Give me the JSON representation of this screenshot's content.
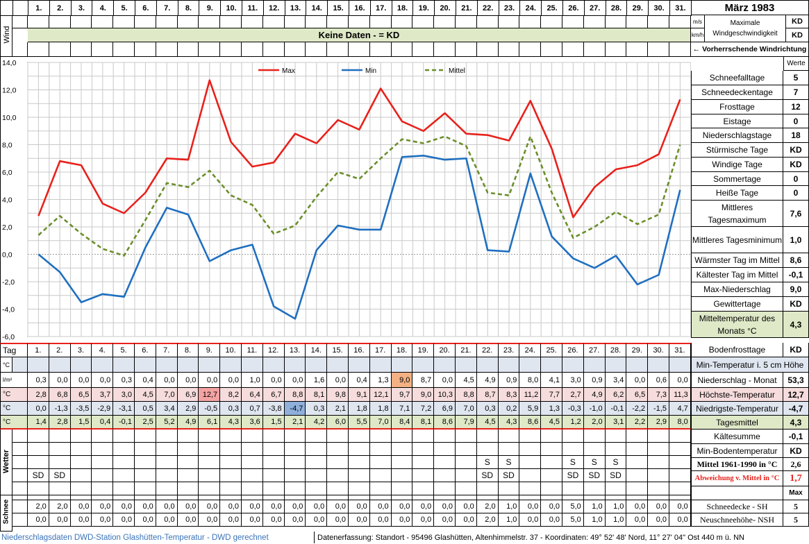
{
  "header": {
    "title": "März 1983",
    "days": [
      "1.",
      "2.",
      "3.",
      "4.",
      "5.",
      "6.",
      "7.",
      "8.",
      "9.",
      "10.",
      "11.",
      "12.",
      "13.",
      "14.",
      "15.",
      "16.",
      "17.",
      "18.",
      "19.",
      "20.",
      "21.",
      "22.",
      "23.",
      "24.",
      "25.",
      "26.",
      "27.",
      "28.",
      "29.",
      "30.",
      "31."
    ],
    "wind_label": "Wind",
    "unit_ms": "m/s",
    "unit_kmh": "km/h",
    "max_wind_label": "Maximale Windgeschwindigkeit",
    "max_wind_val1": "KD",
    "max_wind_val2": "KD",
    "no_data_banner": "Keine Daten -  = KD",
    "wind_direction_label": "← Vorherrschende Windrichtung",
    "werte_label": "Werte"
  },
  "chart_data": {
    "type": "line",
    "x": [
      1,
      2,
      3,
      4,
      5,
      6,
      7,
      8,
      9,
      10,
      11,
      12,
      13,
      14,
      15,
      16,
      17,
      18,
      19,
      20,
      21,
      22,
      23,
      24,
      25,
      26,
      27,
      28,
      29,
      30,
      31
    ],
    "ylim": [
      -6,
      14
    ],
    "yticks": [
      "14,0",
      "12,0",
      "10,0",
      "8,0",
      "6,0",
      "4,0",
      "2,0",
      "0,0",
      "-2,0",
      "-4,0",
      "-6,0"
    ],
    "grid": true,
    "legend_position": "top",
    "series": [
      {
        "name": "Max",
        "color": "#e8211b",
        "dash": "none",
        "values": [
          2.8,
          6.8,
          6.5,
          3.7,
          3.0,
          4.5,
          7.0,
          6.9,
          12.7,
          8.2,
          6.4,
          6.7,
          8.8,
          8.1,
          9.8,
          9.1,
          12.1,
          9.7,
          9.0,
          10.3,
          8.8,
          8.7,
          8.3,
          11.2,
          7.7,
          2.7,
          4.9,
          6.2,
          6.5,
          7.3,
          11.3
        ]
      },
      {
        "name": "Min",
        "color": "#1f6fc0",
        "dash": "none",
        "values": [
          0.0,
          -1.3,
          -3.5,
          -2.9,
          -3.1,
          0.5,
          3.4,
          2.9,
          -0.5,
          0.3,
          0.7,
          -3.8,
          -4.7,
          0.3,
          2.1,
          1.8,
          1.8,
          7.1,
          7.2,
          6.9,
          7.0,
          0.3,
          0.2,
          5.9,
          1.3,
          -0.3,
          -1.0,
          -0.1,
          -2.2,
          -1.5,
          4.7
        ]
      },
      {
        "name": "Mittel",
        "color": "#6b8e2a",
        "dash": "6,4",
        "values": [
          1.4,
          2.8,
          1.5,
          0.4,
          -0.1,
          2.5,
          5.2,
          4.9,
          6.1,
          4.3,
          3.6,
          1.5,
          2.1,
          4.2,
          6.0,
          5.5,
          7.0,
          8.4,
          8.1,
          8.6,
          7.9,
          4.5,
          4.3,
          8.6,
          4.5,
          1.2,
          2.0,
          3.1,
          2.2,
          2.9,
          8.0
        ]
      }
    ]
  },
  "table": {
    "tag_label": "Tag",
    "unit_c": "°C",
    "unit_lm2": "l/m²",
    "wetter_label": "Wetter",
    "schnee_label": "Schnee",
    "precip": [
      "0,3",
      "0,0",
      "0,0",
      "0,0",
      "0,3",
      "0,4",
      "0,0",
      "0,0",
      "0,0",
      "0,0",
      "1,0",
      "0,0",
      "0,0",
      "1,6",
      "0,0",
      "0,4",
      "1,3",
      "9,0",
      "8,7",
      "0,0",
      "4,5",
      "4,9",
      "0,9",
      "8,0",
      "4,1",
      "3,0",
      "0,9",
      "3,4",
      "0,0",
      "0,6",
      "0,0"
    ],
    "max": [
      "2,8",
      "6,8",
      "6,5",
      "3,7",
      "3,0",
      "4,5",
      "7,0",
      "6,9",
      "12,7",
      "8,2",
      "6,4",
      "6,7",
      "8,8",
      "8,1",
      "9,8",
      "9,1",
      "12,1",
      "9,7",
      "9,0",
      "10,3",
      "8,8",
      "8,7",
      "8,3",
      "11,2",
      "7,7",
      "2,7",
      "4,9",
      "6,2",
      "6,5",
      "7,3",
      "11,3"
    ],
    "min": [
      "0,0",
      "-1,3",
      "-3,5",
      "-2,9",
      "-3,1",
      "0,5",
      "3,4",
      "2,9",
      "-0,5",
      "0,3",
      "0,7",
      "-3,8",
      "-4,7",
      "0,3",
      "2,1",
      "1,8",
      "1,8",
      "7,1",
      "7,2",
      "6,9",
      "7,0",
      "0,3",
      "0,2",
      "5,9",
      "1,3",
      "-0,3",
      "-1,0",
      "-0,1",
      "-2,2",
      "-1,5",
      "4,7"
    ],
    "mean": [
      "1,4",
      "2,8",
      "1,5",
      "0,4",
      "-0,1",
      "2,5",
      "5,2",
      "4,9",
      "6,1",
      "4,3",
      "3,6",
      "1,5",
      "2,1",
      "4,2",
      "6,0",
      "5,5",
      "7,0",
      "8,4",
      "8,1",
      "8,6",
      "7,9",
      "4,5",
      "4,3",
      "8,6",
      "4,5",
      "1,2",
      "2,0",
      "3,1",
      "2,2",
      "2,9",
      "8,0"
    ],
    "wetter_s": [
      "",
      "",
      "",
      "",
      "",
      "",
      "",
      "",
      "",
      "",
      "",
      "",
      "",
      "",
      "",
      "",
      "",
      "",
      "",
      "",
      "",
      "S",
      "S",
      "",
      "",
      "S",
      "S",
      "S",
      "",
      "",
      ""
    ],
    "wetter_sd": [
      "SD",
      "SD",
      "",
      "",
      "",
      "",
      "",
      "",
      "",
      "",
      "",
      "",
      "",
      "",
      "",
      "",
      "",
      "",
      "",
      "",
      "",
      "SD",
      "SD",
      "",
      "",
      "SD",
      "SD",
      "SD",
      "",
      "",
      ""
    ],
    "sh": [
      "2,0",
      "2,0",
      "0,0",
      "0,0",
      "0,0",
      "0,0",
      "0,0",
      "0,0",
      "0,0",
      "0,0",
      "0,0",
      "0,0",
      "0,0",
      "0,0",
      "0,0",
      "0,0",
      "0,0",
      "0,0",
      "0,0",
      "0,0",
      "0,0",
      "2,0",
      "1,0",
      "0,0",
      "0,0",
      "5,0",
      "1,0",
      "1,0",
      "0,0",
      "0,0",
      "0,0"
    ],
    "nsh": [
      "0,0",
      "0,0",
      "0,0",
      "0,0",
      "0,0",
      "0,0",
      "0,0",
      "0,0",
      "0,0",
      "0,0",
      "0,0",
      "0,0",
      "0,0",
      "0,0",
      "0,0",
      "0,0",
      "0,0",
      "0,0",
      "0,0",
      "0,0",
      "0,0",
      "2,0",
      "1,0",
      "0,0",
      "0,0",
      "5,0",
      "1,0",
      "1,0",
      "0,0",
      "0,0",
      "0,0"
    ]
  },
  "stats": [
    {
      "label": "Schneefalltage",
      "value": "5"
    },
    {
      "label": "Schneedeckentage",
      "value": "7"
    },
    {
      "label": "Frosttage",
      "value": "12"
    },
    {
      "label": "Eistage",
      "value": "0"
    },
    {
      "label": "Niederschlagstage",
      "value": "18"
    },
    {
      "label": "Stürmische Tage",
      "value": "KD"
    },
    {
      "label": "Windige Tage",
      "value": "KD"
    },
    {
      "label": "Sommertage",
      "value": "0"
    },
    {
      "label": "Heiße Tage",
      "value": "0"
    },
    {
      "label": "Mittleres Tagesmaximum",
      "value": "7,6"
    },
    {
      "label": "Mittleres Tagesminimum",
      "value": "1,0"
    },
    {
      "label": "Wärmster Tag im Mittel",
      "value": "8,6"
    },
    {
      "label": "Kältester Tag im Mittel",
      "value": "-0,1"
    },
    {
      "label": "Max-Niederschlag",
      "value": "9,0"
    },
    {
      "label": "Gewittertage",
      "value": "KD"
    },
    {
      "label": "Mitteltemperatur des Monats °C",
      "value": "4,3"
    }
  ],
  "lower_stats": {
    "bodenfrost_label": "Bodenfrosttage",
    "bodenfrost_value": "KD",
    "min_temp_5cm_label": "Min-Temperatur i. 5 cm Höhe",
    "precip_month_label": "Niederschlag - Monat",
    "precip_month_value": "53,3",
    "max_temp_label": "Höchste-Temperatur",
    "max_temp_value": "12,7",
    "min_temp_label": "Niedrigste-Temperatur",
    "min_temp_value": "-4,7",
    "tagesmittel_label": "Tagesmittel",
    "tagesmittel_value": "4,3",
    "kaeltesumme_label": "Kältesumme",
    "kaeltesumme_value": "-0,1",
    "min_boden_label": "Min-Bodentemperatur",
    "min_boden_value": "KD",
    "mittel_6190_label": "Mittel 1961-1990 in °C",
    "mittel_6190_value": "2,6",
    "abweichung_label": "Abweichung v. Mittel in °C",
    "abweichung_value": "1,7",
    "max_label": "Max",
    "sh_label": "Schneedecke -  SH",
    "sh_value": "5",
    "nsh_label": "Neuschneehöhe- NSH",
    "nsh_value": "5"
  },
  "footer": {
    "left": "Niederschlagsdaten DWD-Station Glashütten-Temperatur -  DWD gerechnet",
    "right": "Datenerfassung: Standort -  95496  Glashütten, Altenhimmelstr. 37 - Koordinaten: 49° 52' 48' Nord,  11° 27' 04\" Ost  440 m ü. NN"
  }
}
